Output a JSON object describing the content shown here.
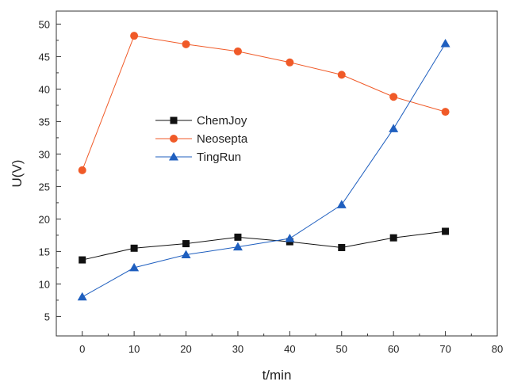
{
  "chart_data": {
    "type": "line",
    "title": "",
    "xlabel": "t/min",
    "ylabel": "U(V)",
    "xlim": [
      -5,
      80
    ],
    "ylim": [
      2,
      52
    ],
    "xticks": [
      0,
      10,
      20,
      30,
      40,
      50,
      60,
      70,
      80
    ],
    "yticks": [
      5,
      10,
      15,
      20,
      25,
      30,
      35,
      40,
      45,
      50
    ],
    "grid": false,
    "legend_position": "center-left",
    "x": [
      0,
      10,
      20,
      30,
      40,
      50,
      60,
      70
    ],
    "series": [
      {
        "name": "ChemJoy",
        "color": "#111111",
        "marker": "square",
        "values": [
          13.7,
          15.5,
          16.2,
          17.2,
          16.5,
          15.6,
          17.1,
          18.1
        ]
      },
      {
        "name": "Neosepta",
        "color": "#f05a28",
        "marker": "circle",
        "values": [
          27.5,
          48.2,
          46.9,
          45.8,
          44.1,
          42.2,
          38.8,
          36.5
        ]
      },
      {
        "name": "TingRun",
        "color": "#1f5fbf",
        "marker": "triangle",
        "values": [
          8.0,
          12.5,
          14.5,
          15.7,
          17.0,
          22.2,
          33.9,
          47.0
        ]
      }
    ]
  }
}
